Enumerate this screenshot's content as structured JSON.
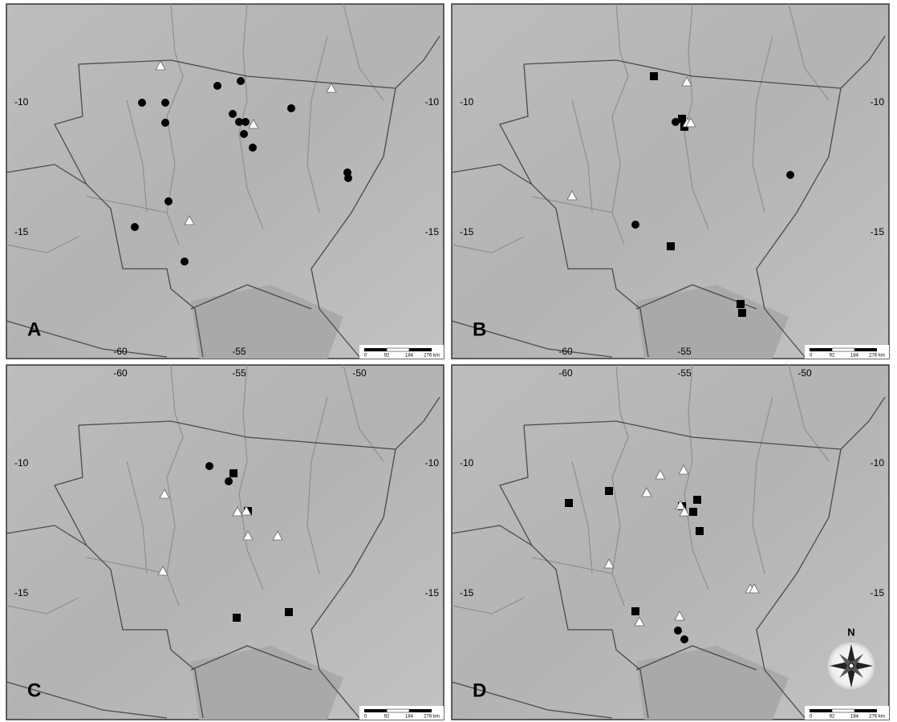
{
  "panels": [
    {
      "label": "A",
      "left_labels": [
        "-10",
        "-15"
      ],
      "right_labels": [
        "-10",
        "-15"
      ],
      "top_labels": [],
      "bottom_labels": [
        "-60",
        "-55"
      ],
      "scale": [
        "0",
        "92",
        "184",
        "276 km"
      ]
    },
    {
      "label": "B",
      "left_labels": [
        "-10",
        "-15"
      ],
      "right_labels": [
        "-10",
        "-15"
      ],
      "top_labels": [],
      "bottom_labels": [
        "-60",
        "-55"
      ],
      "scale": [
        "0",
        "92",
        "184",
        "276 km"
      ]
    },
    {
      "label": "C",
      "left_labels": [
        "-10",
        "-15"
      ],
      "right_labels": [
        "-10",
        "-15"
      ],
      "top_labels": [
        "-60",
        "-55",
        "-50"
      ],
      "bottom_labels": [],
      "scale": [
        "0",
        "92",
        "184",
        "276 km"
      ]
    },
    {
      "label": "D",
      "left_labels": [
        "-10",
        "-15"
      ],
      "right_labels": [
        "-10",
        "-15"
      ],
      "top_labels": [
        "-60",
        "-55",
        "-50"
      ],
      "bottom_labels": [],
      "scale": [
        "0",
        "92",
        "184",
        "276 km"
      ],
      "compass": "N"
    }
  ]
}
